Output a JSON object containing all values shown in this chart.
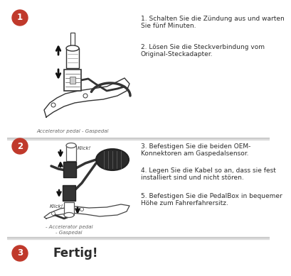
{
  "bg_color": "#ffffff",
  "divider_color": "#c8c8c8",
  "circle_color": "#c0392b",
  "circle_text_color": "#ffffff",
  "text_color": "#2c2c2c",
  "caption_color": "#666666",
  "step1_line1": "1. Schalten Sie die Zündung aus und warten",
  "step1_line2": "Sie fünf Minuten.",
  "step1_line3": "2. Lösen Sie die Steckverbindung vom",
  "step1_line4": "Original-Steckadapter.",
  "step2_line1": "3. Befestigen Sie die beiden OEM-",
  "step2_line2": "Konnektoren am Gaspedalsensor.",
  "step2_line3": "4. Legen Sie die Kabel so an, dass sie fest",
  "step2_line4": "installiert sind und nicht stören.",
  "step2_line5": "5. Befestigen Sie die PedalBox in bequemer",
  "step2_line6": "Höhe zum Fahrerfahrersitz.",
  "step3_text": "Fertig!",
  "caption1": "Accelerator pedal - Gaspedal",
  "caption2a": "- Accelerator pedal",
  "caption2b": "- Gaspedal",
  "klick1": "Klick!",
  "klick2": "Klick!",
  "font_size_main": 6.5,
  "font_size_caption": 5.0
}
